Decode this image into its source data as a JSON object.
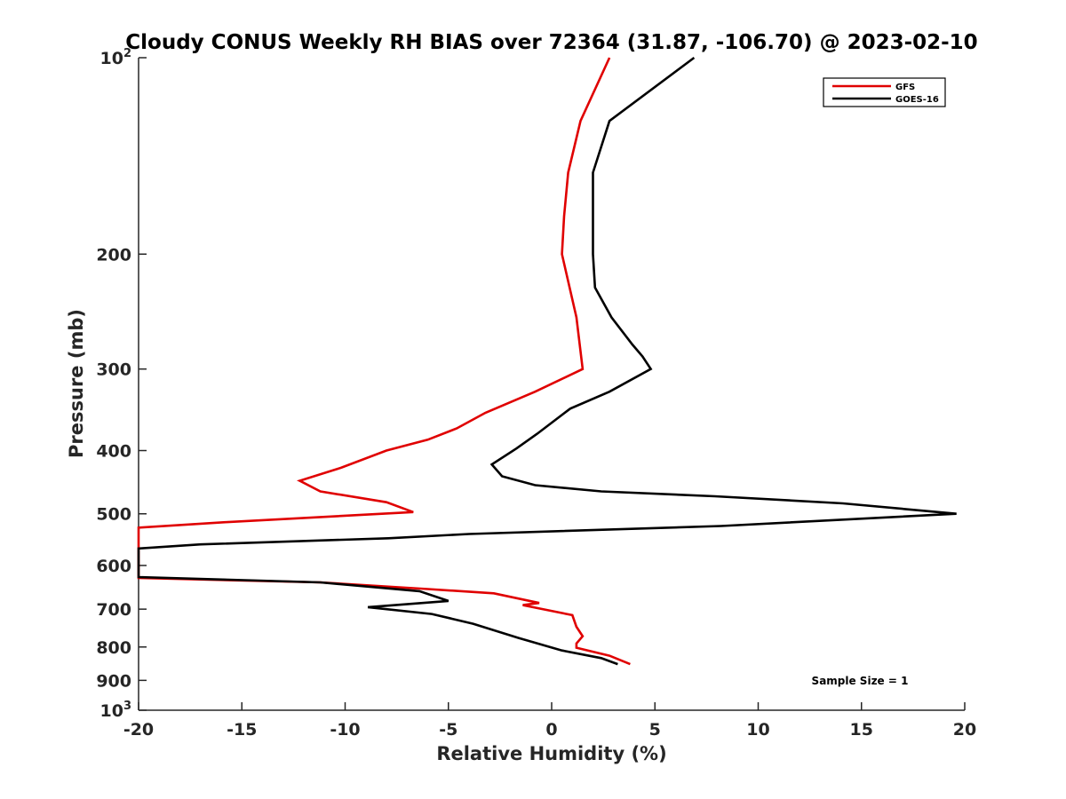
{
  "chart_data": {
    "type": "line",
    "title": "Cloudy CONUS Weekly RH BIAS over 72364 (31.87, -106.70) @ 2023-02-10",
    "xlabel": "Relative Humidity (%)",
    "ylabel": "Pressure (mb)",
    "xlim": [
      -20,
      20
    ],
    "ylim": [
      100,
      1000
    ],
    "y_scale": "log",
    "y_reversed": true,
    "grid": false,
    "legend_position": "top-right",
    "xticks": [
      "-20",
      "-15",
      "-10",
      "-5",
      "0",
      "5",
      "10",
      "15",
      "20"
    ],
    "yticks": [
      {
        "value": 100,
        "base": "10",
        "exp": "2"
      },
      {
        "value": 200,
        "label": "200"
      },
      {
        "value": 300,
        "label": "300"
      },
      {
        "value": 400,
        "label": "400"
      },
      {
        "value": 500,
        "label": "500"
      },
      {
        "value": 600,
        "label": "600"
      },
      {
        "value": 700,
        "label": "700"
      },
      {
        "value": 800,
        "label": "800"
      },
      {
        "value": 900,
        "label": "900"
      },
      {
        "value": 1000,
        "base": "10",
        "exp": "3"
      }
    ],
    "annotation": "Sample Size = 1",
    "series": [
      {
        "name": "GFS",
        "color": "#e00000",
        "points": [
          [
            2.8,
            100
          ],
          [
            1.4,
            125
          ],
          [
            0.8,
            150
          ],
          [
            0.6,
            175
          ],
          [
            0.5,
            200
          ],
          [
            1.2,
            250
          ],
          [
            1.5,
            300
          ],
          [
            -0.8,
            325
          ],
          [
            -3.2,
            350
          ],
          [
            -4.6,
            370
          ],
          [
            -6.0,
            385
          ],
          [
            -8.0,
            400
          ],
          [
            -10.2,
            425
          ],
          [
            -12.2,
            445
          ],
          [
            -11.2,
            462
          ],
          [
            -8.0,
            480
          ],
          [
            -6.7,
            497
          ],
          [
            -15.8,
            515
          ],
          [
            -20.0,
            525
          ],
          [
            -20.0,
            627
          ],
          [
            -11.2,
            637
          ],
          [
            -6.0,
            652
          ],
          [
            -2.8,
            662
          ],
          [
            -0.6,
            685
          ],
          [
            -1.4,
            690
          ],
          [
            1.0,
            715
          ],
          [
            1.2,
            745
          ],
          [
            1.5,
            770
          ],
          [
            1.2,
            790
          ],
          [
            1.2,
            802
          ],
          [
            2.8,
            825
          ],
          [
            3.8,
            850
          ]
        ]
      },
      {
        "name": "GOES-16",
        "color": "#000000",
        "points": [
          [
            6.9,
            100
          ],
          [
            2.8,
            125
          ],
          [
            2.0,
            150
          ],
          [
            2.0,
            175
          ],
          [
            2.0,
            200
          ],
          [
            2.1,
            225
          ],
          [
            2.9,
            250
          ],
          [
            3.9,
            275
          ],
          [
            4.4,
            287
          ],
          [
            4.8,
            300
          ],
          [
            2.8,
            325
          ],
          [
            0.9,
            345
          ],
          [
            -0.7,
            377
          ],
          [
            -1.7,
            397
          ],
          [
            -2.9,
            420
          ],
          [
            -2.4,
            438
          ],
          [
            -0.8,
            452
          ],
          [
            2.4,
            462
          ],
          [
            7.9,
            470
          ],
          [
            14.1,
            482
          ],
          [
            19.6,
            500
          ],
          [
            8.2,
            522
          ],
          [
            -4.0,
            537
          ],
          [
            -7.9,
            545
          ],
          [
            -17.0,
            557
          ],
          [
            -20.0,
            565
          ],
          [
            -20.0,
            625
          ],
          [
            -11.2,
            637
          ],
          [
            -6.4,
            657
          ],
          [
            -5.0,
            680
          ],
          [
            -8.9,
            695
          ],
          [
            -5.8,
            712
          ],
          [
            -3.8,
            737
          ],
          [
            -1.6,
            775
          ],
          [
            0.5,
            810
          ],
          [
            2.4,
            832
          ],
          [
            3.2,
            850
          ]
        ]
      }
    ]
  }
}
